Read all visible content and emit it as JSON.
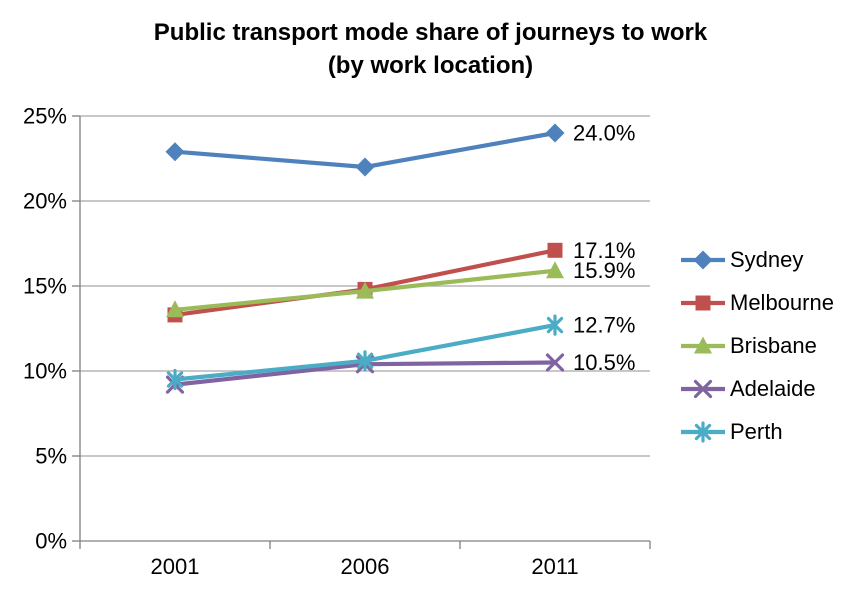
{
  "chart_data": {
    "type": "line",
    "title_line1": "Public transport mode share of journeys to work",
    "title_line2": "(by work location)",
    "categories": [
      "2001",
      "2006",
      "2011"
    ],
    "xlabel": "",
    "ylabel": "",
    "ylim": [
      0,
      25
    ],
    "grid": true,
    "legend_position": "right",
    "y_ticks": [
      {
        "label": "25%",
        "value": 25
      },
      {
        "label": "20%",
        "value": 20
      },
      {
        "label": "15%",
        "value": 15
      },
      {
        "label": "10%",
        "value": 10
      },
      {
        "label": "5%",
        "value": 5
      },
      {
        "label": "0%",
        "value": 0
      }
    ],
    "series": [
      {
        "name": "Sydney",
        "color": "#4F81BD",
        "marker": "diamond",
        "values": [
          22.9,
          22.0,
          24.0
        ],
        "end_label": "24.0%"
      },
      {
        "name": "Melbourne",
        "color": "#C0504D",
        "marker": "square",
        "values": [
          13.3,
          14.8,
          17.1
        ],
        "end_label": "17.1%"
      },
      {
        "name": "Brisbane",
        "color": "#9BBB59",
        "marker": "triangle",
        "values": [
          13.6,
          14.7,
          15.9
        ],
        "end_label": "15.9%"
      },
      {
        "name": "Adelaide",
        "color": "#8064A2",
        "marker": "x",
        "values": [
          9.2,
          10.4,
          10.5
        ],
        "end_label": "10.5%"
      },
      {
        "name": "Perth",
        "color": "#4BACC6",
        "marker": "asterisk",
        "values": [
          9.5,
          10.6,
          12.7
        ],
        "end_label": "12.7%"
      }
    ],
    "colors": {
      "axis": "#808080",
      "gridline": "#A6A6A6",
      "text": "#000000",
      "background": "#FFFFFF"
    }
  }
}
